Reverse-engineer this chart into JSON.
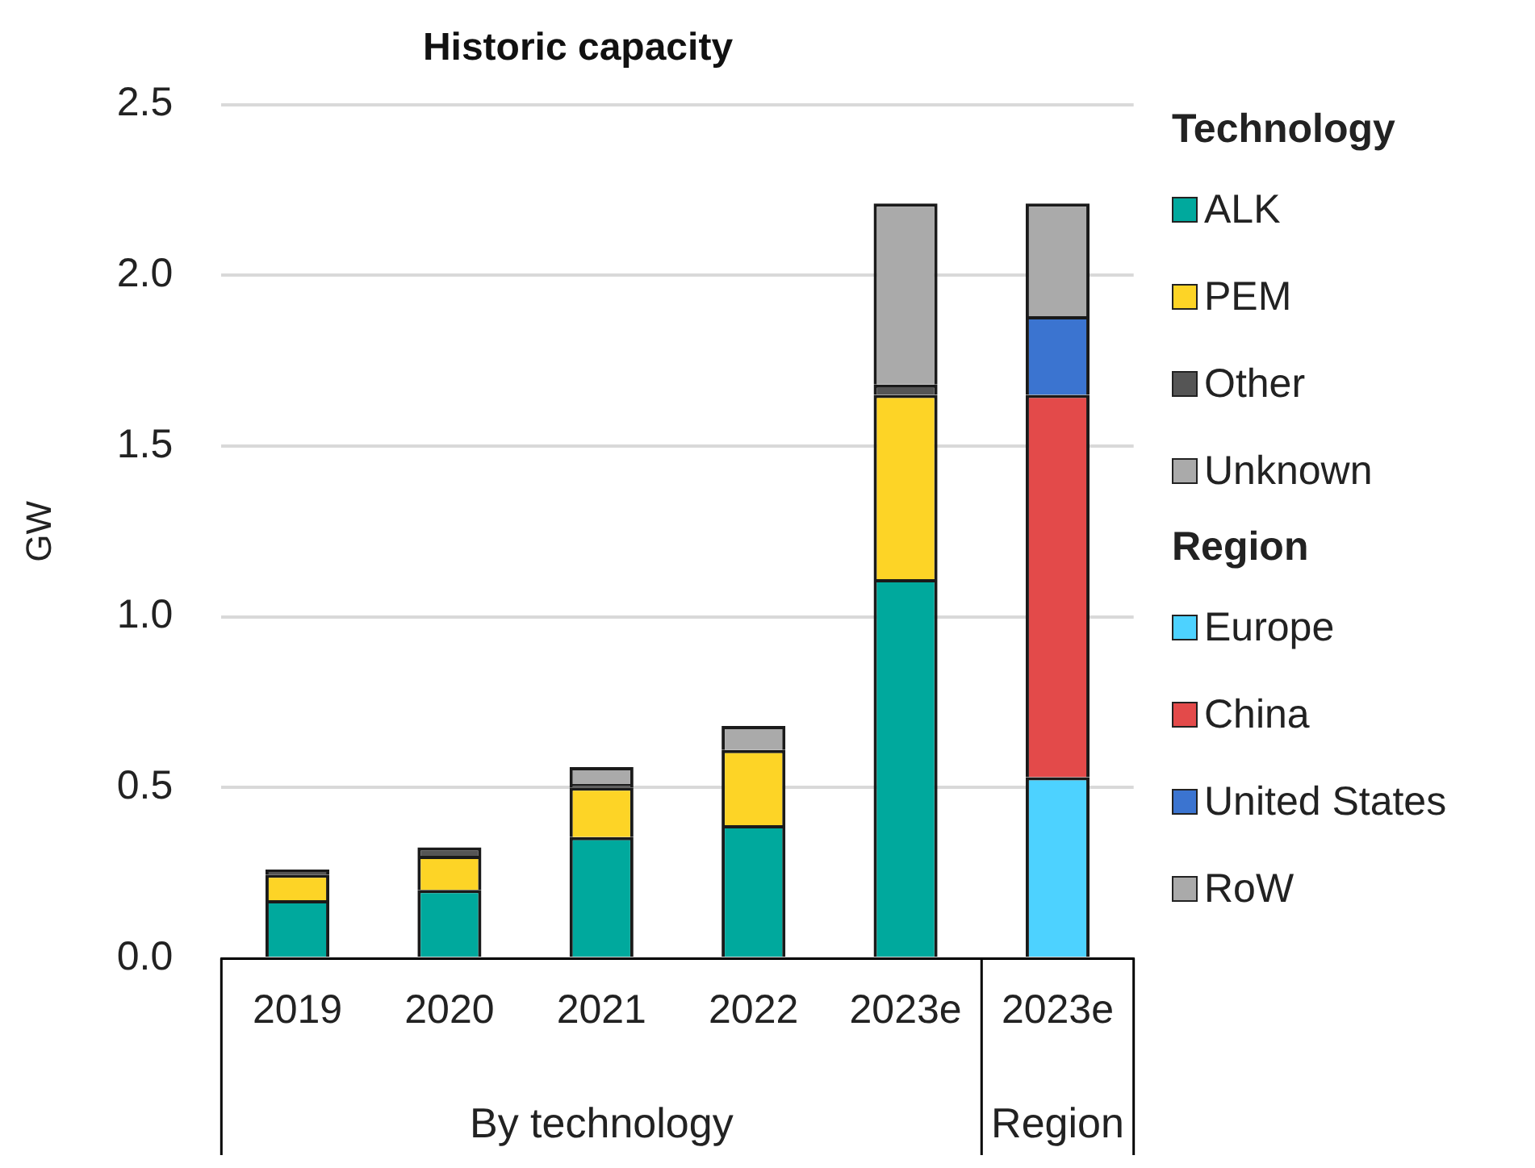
{
  "chart_data": {
    "type": "bar",
    "title": "Historic capacity",
    "ylabel": "GW",
    "legend_title": "Technology",
    "categories": [
      "2019",
      "2020",
      "2021",
      "2022",
      "2023e",
      "2023e"
    ],
    "stacked": true,
    "grid": "y",
    "legend": "right",
    "ylim": [
      0,
      2.5
    ],
    "yticks": [
      {
        "value": 0,
        "label": "0.0"
      },
      {
        "value": 0.5,
        "label": "0.5"
      },
      {
        "value": 1,
        "label": "1.0"
      },
      {
        "value": 1.5,
        "label": "1.5"
      },
      {
        "value": 2,
        "label": "2.0"
      },
      {
        "value": 2.5,
        "label": "2.5"
      }
    ],
    "annotations": [
      "By technology",
      "Region",
      "Region"
    ],
    "series": [
      {
        "name": "ALK",
        "color": "#00a99d",
        "values": [
          0.17,
          0.2,
          0.355,
          0.39,
          1.11,
          null
        ]
      },
      {
        "name": "PEM",
        "color": "#fdd426",
        "values": [
          0.075,
          0.1,
          0.145,
          0.22,
          0.54,
          null
        ]
      },
      {
        "name": "Other",
        "color": "#555555",
        "values": [
          0.015,
          0.025,
          0.01,
          null,
          0.03,
          null
        ]
      },
      {
        "name": "Unknown",
        "color": "#aaaaaa",
        "values": [
          null,
          null,
          0.05,
          0.07,
          0.53,
          null
        ]
      },
      {
        "name": "Europe",
        "color": "#4dd2ff",
        "values": [
          null,
          null,
          null,
          null,
          null,
          0.53
        ]
      },
      {
        "name": "China",
        "color": "#e34a4a",
        "values": [
          null,
          null,
          null,
          null,
          null,
          1.12
        ]
      },
      {
        "name": "United States",
        "color": "#3b74d0",
        "values": [
          null,
          null,
          null,
          null,
          null,
          0.23
        ]
      },
      {
        "name": "RoW",
        "color": "#aaaaaa",
        "values": [
          null,
          null,
          null,
          null,
          null,
          0.33
        ]
      }
    ]
  }
}
